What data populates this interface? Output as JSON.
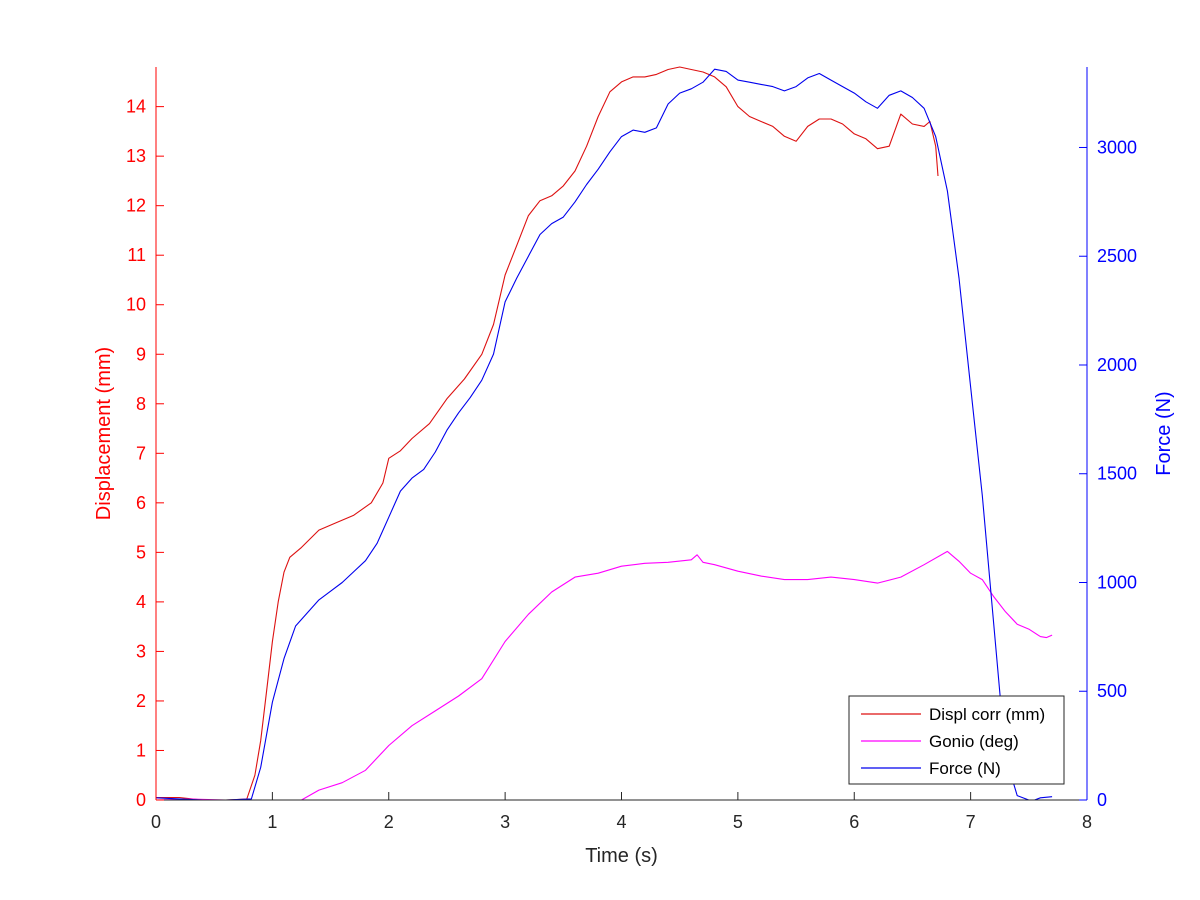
{
  "chart_data": {
    "type": "line",
    "title": "",
    "xlabel": "Time (s)",
    "ylabel_left": "Displacement (mm)",
    "ylabel_right": "Force (N)",
    "xlim": [
      0,
      8
    ],
    "ylim_left": [
      0,
      14.8
    ],
    "ylim_right": [
      0,
      3370
    ],
    "x_ticks": [
      0,
      1,
      2,
      3,
      4,
      5,
      6,
      7,
      8
    ],
    "y_ticks_left": [
      0,
      1,
      2,
      3,
      4,
      5,
      6,
      7,
      8,
      9,
      10,
      11,
      12,
      13,
      14
    ],
    "y_ticks_right": [
      0,
      500,
      1000,
      1500,
      2000,
      2500,
      3000
    ],
    "grid": false,
    "legend_position": "bottom-right",
    "colors": {
      "left_axis": "#ff0000",
      "right_axis": "#0000ff",
      "displ": "#dd1111",
      "gonio": "#ff00ff",
      "force": "#0000ee",
      "axis": "#262626"
    },
    "series": [
      {
        "name": "Displ corr (mm)",
        "axis": "left",
        "color": "#dd1111",
        "points": [
          [
            0,
            0.05
          ],
          [
            0.2,
            0.05
          ],
          [
            0.4,
            0
          ],
          [
            0.6,
            0
          ],
          [
            0.78,
            0.02
          ],
          [
            0.85,
            0.5
          ],
          [
            0.9,
            1.2
          ],
          [
            0.95,
            2.2
          ],
          [
            1.0,
            3.2
          ],
          [
            1.05,
            4.0
          ],
          [
            1.1,
            4.6
          ],
          [
            1.15,
            4.9
          ],
          [
            1.25,
            5.1
          ],
          [
            1.4,
            5.45
          ],
          [
            1.55,
            5.6
          ],
          [
            1.7,
            5.75
          ],
          [
            1.85,
            6.0
          ],
          [
            1.95,
            6.4
          ],
          [
            2.0,
            6.9
          ],
          [
            2.1,
            7.05
          ],
          [
            2.2,
            7.3
          ],
          [
            2.35,
            7.6
          ],
          [
            2.5,
            8.1
          ],
          [
            2.65,
            8.5
          ],
          [
            2.8,
            9.0
          ],
          [
            2.9,
            9.6
          ],
          [
            3.0,
            10.6
          ],
          [
            3.1,
            11.2
          ],
          [
            3.2,
            11.8
          ],
          [
            3.3,
            12.1
          ],
          [
            3.4,
            12.2
          ],
          [
            3.5,
            12.4
          ],
          [
            3.6,
            12.7
          ],
          [
            3.7,
            13.2
          ],
          [
            3.8,
            13.8
          ],
          [
            3.9,
            14.3
          ],
          [
            4.0,
            14.5
          ],
          [
            4.1,
            14.6
          ],
          [
            4.2,
            14.6
          ],
          [
            4.3,
            14.65
          ],
          [
            4.4,
            14.75
          ],
          [
            4.5,
            14.8
          ],
          [
            4.6,
            14.75
          ],
          [
            4.7,
            14.7
          ],
          [
            4.8,
            14.6
          ],
          [
            4.9,
            14.4
          ],
          [
            5.0,
            14.0
          ],
          [
            5.1,
            13.8
          ],
          [
            5.2,
            13.7
          ],
          [
            5.3,
            13.6
          ],
          [
            5.4,
            13.4
          ],
          [
            5.5,
            13.3
          ],
          [
            5.6,
            13.6
          ],
          [
            5.7,
            13.75
          ],
          [
            5.8,
            13.75
          ],
          [
            5.9,
            13.65
          ],
          [
            6.0,
            13.45
          ],
          [
            6.1,
            13.35
          ],
          [
            6.2,
            13.15
          ],
          [
            6.3,
            13.2
          ],
          [
            6.4,
            13.85
          ],
          [
            6.5,
            13.65
          ],
          [
            6.6,
            13.6
          ],
          [
            6.65,
            13.7
          ],
          [
            6.7,
            13.2
          ],
          [
            6.72,
            12.6
          ]
        ]
      },
      {
        "name": "Gonio (deg)",
        "axis": "left",
        "color": "#ff00ff",
        "points": [
          [
            0,
            0
          ],
          [
            0.3,
            0.02
          ],
          [
            0.6,
            0
          ],
          [
            0.8,
            0
          ],
          [
            1.25,
            0
          ],
          [
            1.4,
            0.2
          ],
          [
            1.6,
            0.35
          ],
          [
            1.8,
            0.6
          ],
          [
            2.0,
            1.1
          ],
          [
            2.2,
            1.5
          ],
          [
            2.4,
            1.8
          ],
          [
            2.6,
            2.1
          ],
          [
            2.8,
            2.45
          ],
          [
            3.0,
            3.2
          ],
          [
            3.2,
            3.75
          ],
          [
            3.4,
            4.2
          ],
          [
            3.6,
            4.5
          ],
          [
            3.8,
            4.58
          ],
          [
            4.0,
            4.72
          ],
          [
            4.2,
            4.78
          ],
          [
            4.4,
            4.8
          ],
          [
            4.6,
            4.85
          ],
          [
            4.65,
            4.95
          ],
          [
            4.7,
            4.8
          ],
          [
            4.8,
            4.75
          ],
          [
            5.0,
            4.62
          ],
          [
            5.2,
            4.52
          ],
          [
            5.4,
            4.45
          ],
          [
            5.6,
            4.45
          ],
          [
            5.8,
            4.5
          ],
          [
            6.0,
            4.45
          ],
          [
            6.2,
            4.38
          ],
          [
            6.4,
            4.5
          ],
          [
            6.6,
            4.75
          ],
          [
            6.8,
            5.02
          ],
          [
            6.9,
            4.82
          ],
          [
            7.0,
            4.58
          ],
          [
            7.1,
            4.45
          ],
          [
            7.2,
            4.1
          ],
          [
            7.3,
            3.8
          ],
          [
            7.4,
            3.55
          ],
          [
            7.5,
            3.45
          ],
          [
            7.6,
            3.3
          ],
          [
            7.65,
            3.28
          ],
          [
            7.7,
            3.33
          ]
        ]
      },
      {
        "name": "Force (N)",
        "axis": "right",
        "color": "#0000ee",
        "points": [
          [
            0,
            10
          ],
          [
            0.2,
            5
          ],
          [
            0.4,
            0
          ],
          [
            0.6,
            0
          ],
          [
            0.82,
            5
          ],
          [
            0.9,
            150
          ],
          [
            1.0,
            450
          ],
          [
            1.1,
            650
          ],
          [
            1.2,
            800
          ],
          [
            1.3,
            860
          ],
          [
            1.4,
            920
          ],
          [
            1.5,
            960
          ],
          [
            1.6,
            1000
          ],
          [
            1.7,
            1050
          ],
          [
            1.8,
            1100
          ],
          [
            1.9,
            1180
          ],
          [
            2.0,
            1300
          ],
          [
            2.1,
            1420
          ],
          [
            2.2,
            1480
          ],
          [
            2.3,
            1520
          ],
          [
            2.4,
            1600
          ],
          [
            2.5,
            1700
          ],
          [
            2.6,
            1780
          ],
          [
            2.7,
            1850
          ],
          [
            2.8,
            1930
          ],
          [
            2.9,
            2050
          ],
          [
            3.0,
            2290
          ],
          [
            3.1,
            2400
          ],
          [
            3.2,
            2500
          ],
          [
            3.3,
            2600
          ],
          [
            3.4,
            2650
          ],
          [
            3.5,
            2680
          ],
          [
            3.6,
            2750
          ],
          [
            3.7,
            2830
          ],
          [
            3.8,
            2900
          ],
          [
            3.9,
            2980
          ],
          [
            4.0,
            3050
          ],
          [
            4.1,
            3080
          ],
          [
            4.2,
            3070
          ],
          [
            4.3,
            3090
          ],
          [
            4.4,
            3200
          ],
          [
            4.5,
            3250
          ],
          [
            4.6,
            3270
          ],
          [
            4.7,
            3300
          ],
          [
            4.8,
            3360
          ],
          [
            4.9,
            3350
          ],
          [
            5.0,
            3310
          ],
          [
            5.1,
            3300
          ],
          [
            5.2,
            3290
          ],
          [
            5.3,
            3280
          ],
          [
            5.4,
            3260
          ],
          [
            5.5,
            3280
          ],
          [
            5.6,
            3320
          ],
          [
            5.7,
            3340
          ],
          [
            5.8,
            3310
          ],
          [
            5.9,
            3280
          ],
          [
            6.0,
            3250
          ],
          [
            6.1,
            3210
          ],
          [
            6.2,
            3180
          ],
          [
            6.3,
            3240
          ],
          [
            6.4,
            3260
          ],
          [
            6.5,
            3230
          ],
          [
            6.6,
            3180
          ],
          [
            6.7,
            3050
          ],
          [
            6.8,
            2800
          ],
          [
            6.9,
            2400
          ],
          [
            7.0,
            1900
          ],
          [
            7.1,
            1400
          ],
          [
            7.2,
            800
          ],
          [
            7.3,
            200
          ],
          [
            7.4,
            20
          ],
          [
            7.5,
            0
          ],
          [
            7.55,
            0
          ],
          [
            7.6,
            10
          ],
          [
            7.7,
            15
          ]
        ]
      }
    ]
  }
}
